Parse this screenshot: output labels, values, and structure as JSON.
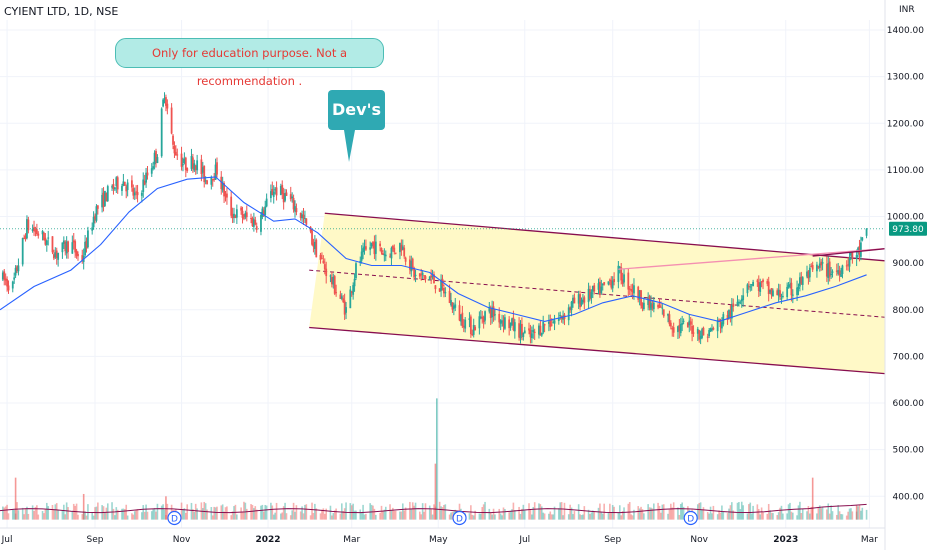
{
  "header": {
    "title": "CYIENT LTD, 1D, NSE",
    "currency": "INR"
  },
  "annotations": {
    "note": "Only for education purpose. Not a recommendation .",
    "callout": "Dev's"
  },
  "colors": {
    "up": "#26a69a",
    "down": "#ef5350",
    "ma": "#2962ff",
    "channel": "#880e4f",
    "channel_fill": "#fff9c4",
    "price_badge": "#089981",
    "volume_ma": "#880e4f"
  },
  "chart_data": {
    "type": "candlestick",
    "symbol": "CYIENT LTD",
    "interval": "1D",
    "exchange": "NSE",
    "y_ticks": [
      "1400.00",
      "1300.00",
      "1200.00",
      "1100.00",
      "1000.00",
      "900.00",
      "800.00",
      "700.00",
      "600.00",
      "500.00",
      "400.00"
    ],
    "ylim": [
      350,
      1440
    ],
    "last_price_label": "973.80",
    "last_price": 973.8,
    "x_ticks": [
      {
        "label": "Jul",
        "date": "2021-07-01",
        "bold": false
      },
      {
        "label": "Sep",
        "date": "2021-09-01",
        "bold": false
      },
      {
        "label": "Nov",
        "date": "2021-11-01",
        "bold": false
      },
      {
        "label": "2022",
        "date": "2022-01-01",
        "bold": true
      },
      {
        "label": "Mar",
        "date": "2022-03-01",
        "bold": false
      },
      {
        "label": "May",
        "date": "2022-05-01",
        "bold": false
      },
      {
        "label": "Jul",
        "date": "2022-07-01",
        "bold": false
      },
      {
        "label": "Sep",
        "date": "2022-09-01",
        "bold": false
      },
      {
        "label": "Nov",
        "date": "2022-11-01",
        "bold": false
      },
      {
        "label": "2023",
        "date": "2023-01-01",
        "bold": true
      },
      {
        "label": "Mar",
        "date": "2023-03-01",
        "bold": false
      }
    ],
    "xlim": [
      "2021-06-26",
      "2023-03-12"
    ],
    "price_path": [
      [
        "2021-06-26",
        870
      ],
      [
        "2021-07-05",
        850
      ],
      [
        "2021-07-15",
        980
      ],
      [
        "2021-07-25",
        960
      ],
      [
        "2021-08-05",
        920
      ],
      [
        "2021-08-15",
        945
      ],
      [
        "2021-08-22",
        900
      ],
      [
        "2021-09-01",
        1010
      ],
      [
        "2021-09-10",
        1050
      ],
      [
        "2021-09-20",
        1080
      ],
      [
        "2021-09-30",
        1040
      ],
      [
        "2021-10-08",
        1090
      ],
      [
        "2021-10-15",
        1140
      ],
      [
        "2021-10-20",
        1270
      ],
      [
        "2021-10-26",
        1150
      ],
      [
        "2021-11-03",
        1110
      ],
      [
        "2021-11-10",
        1120
      ],
      [
        "2021-11-18",
        1080
      ],
      [
        "2021-11-26",
        1100
      ],
      [
        "2021-12-05",
        1010
      ],
      [
        "2021-12-15",
        1000
      ],
      [
        "2021-12-25",
        985
      ],
      [
        "2022-01-05",
        1060
      ],
      [
        "2022-01-15",
        1040
      ],
      [
        "2022-01-25",
        1000
      ],
      [
        "2022-02-05",
        920
      ],
      [
        "2022-02-15",
        860
      ],
      [
        "2022-02-25",
        800
      ],
      [
        "2022-03-05",
        900
      ],
      [
        "2022-03-15",
        940
      ],
      [
        "2022-03-25",
        920
      ],
      [
        "2022-04-05",
        940
      ],
      [
        "2022-04-15",
        870
      ],
      [
        "2022-04-25",
        870
      ],
      [
        "2022-05-05",
        840
      ],
      [
        "2022-05-15",
        790
      ],
      [
        "2022-05-25",
        760
      ],
      [
        "2022-06-05",
        800
      ],
      [
        "2022-06-15",
        780
      ],
      [
        "2022-06-25",
        760
      ],
      [
        "2022-07-05",
        740
      ],
      [
        "2022-07-15",
        770
      ],
      [
        "2022-07-25",
        780
      ],
      [
        "2022-08-05",
        815
      ],
      [
        "2022-08-15",
        830
      ],
      [
        "2022-08-25",
        845
      ],
      [
        "2022-09-05",
        880
      ],
      [
        "2022-09-15",
        845
      ],
      [
        "2022-09-25",
        810
      ],
      [
        "2022-10-05",
        800
      ],
      [
        "2022-10-15",
        760
      ],
      [
        "2022-10-25",
        765
      ],
      [
        "2022-11-05",
        745
      ],
      [
        "2022-11-15",
        770
      ],
      [
        "2022-11-25",
        800
      ],
      [
        "2022-12-05",
        860
      ],
      [
        "2022-12-15",
        850
      ],
      [
        "2022-12-25",
        830
      ],
      [
        "2023-01-05",
        840
      ],
      [
        "2023-01-15",
        870
      ],
      [
        "2023-01-25",
        890
      ],
      [
        "2023-02-05",
        880
      ],
      [
        "2023-02-15",
        910
      ],
      [
        "2023-02-22",
        925
      ],
      [
        "2023-02-27",
        973.8
      ]
    ],
    "moving_average": [
      [
        "2021-06-26",
        800
      ],
      [
        "2021-07-20",
        850
      ],
      [
        "2021-08-15",
        885
      ],
      [
        "2021-09-05",
        940
      ],
      [
        "2021-09-25",
        1010
      ],
      [
        "2021-10-15",
        1060
      ],
      [
        "2021-11-05",
        1080
      ],
      [
        "2021-11-25",
        1085
      ],
      [
        "2021-12-15",
        1030
      ],
      [
        "2022-01-05",
        990
      ],
      [
        "2022-01-20",
        995
      ],
      [
        "2022-02-05",
        965
      ],
      [
        "2022-02-25",
        910
      ],
      [
        "2022-03-15",
        895
      ],
      [
        "2022-04-05",
        895
      ],
      [
        "2022-04-25",
        880
      ],
      [
        "2022-05-15",
        835
      ],
      [
        "2022-06-05",
        805
      ],
      [
        "2022-06-25",
        790
      ],
      [
        "2022-07-15",
        775
      ],
      [
        "2022-08-05",
        790
      ],
      [
        "2022-08-25",
        815
      ],
      [
        "2022-09-15",
        830
      ],
      [
        "2022-10-05",
        815
      ],
      [
        "2022-10-25",
        790
      ],
      [
        "2022-11-15",
        775
      ],
      [
        "2022-12-05",
        795
      ],
      [
        "2022-12-25",
        815
      ],
      [
        "2023-01-15",
        830
      ],
      [
        "2023-02-05",
        850
      ],
      [
        "2023-02-27",
        875
      ]
    ],
    "channel": {
      "upper": [
        [
          "2022-02-10",
          1007
        ],
        [
          "2023-03-12",
          905
        ]
      ],
      "lower": [
        [
          "2022-01-30",
          762
        ],
        [
          "2023-03-12",
          663
        ]
      ],
      "mid": [
        [
          "2022-01-30",
          885
        ],
        [
          "2023-03-12",
          784
        ]
      ]
    },
    "trend_lines": [
      {
        "name": "red",
        "points": [
          [
            "2022-09-05",
            887
          ],
          [
            "2023-03-12",
            931
          ]
        ]
      },
      {
        "name": "maroon",
        "points": [
          [
            "2023-01-20",
            915
          ],
          [
            "2023-03-12",
            931
          ]
        ]
      }
    ],
    "volume": {
      "baseline": 350,
      "spikes": [
        [
          "2021-07-07",
          440
        ],
        [
          "2021-08-24",
          405
        ],
        [
          "2021-10-21",
          400
        ],
        [
          "2022-04-30",
          610
        ],
        [
          "2022-04-29",
          470
        ],
        [
          "2023-01-20",
          440
        ],
        [
          "2023-02-20",
          380
        ]
      ],
      "dividend_markers": [
        "2021-10-27",
        "2022-05-16",
        "2022-10-26"
      ],
      "dividend_label": "D"
    }
  }
}
